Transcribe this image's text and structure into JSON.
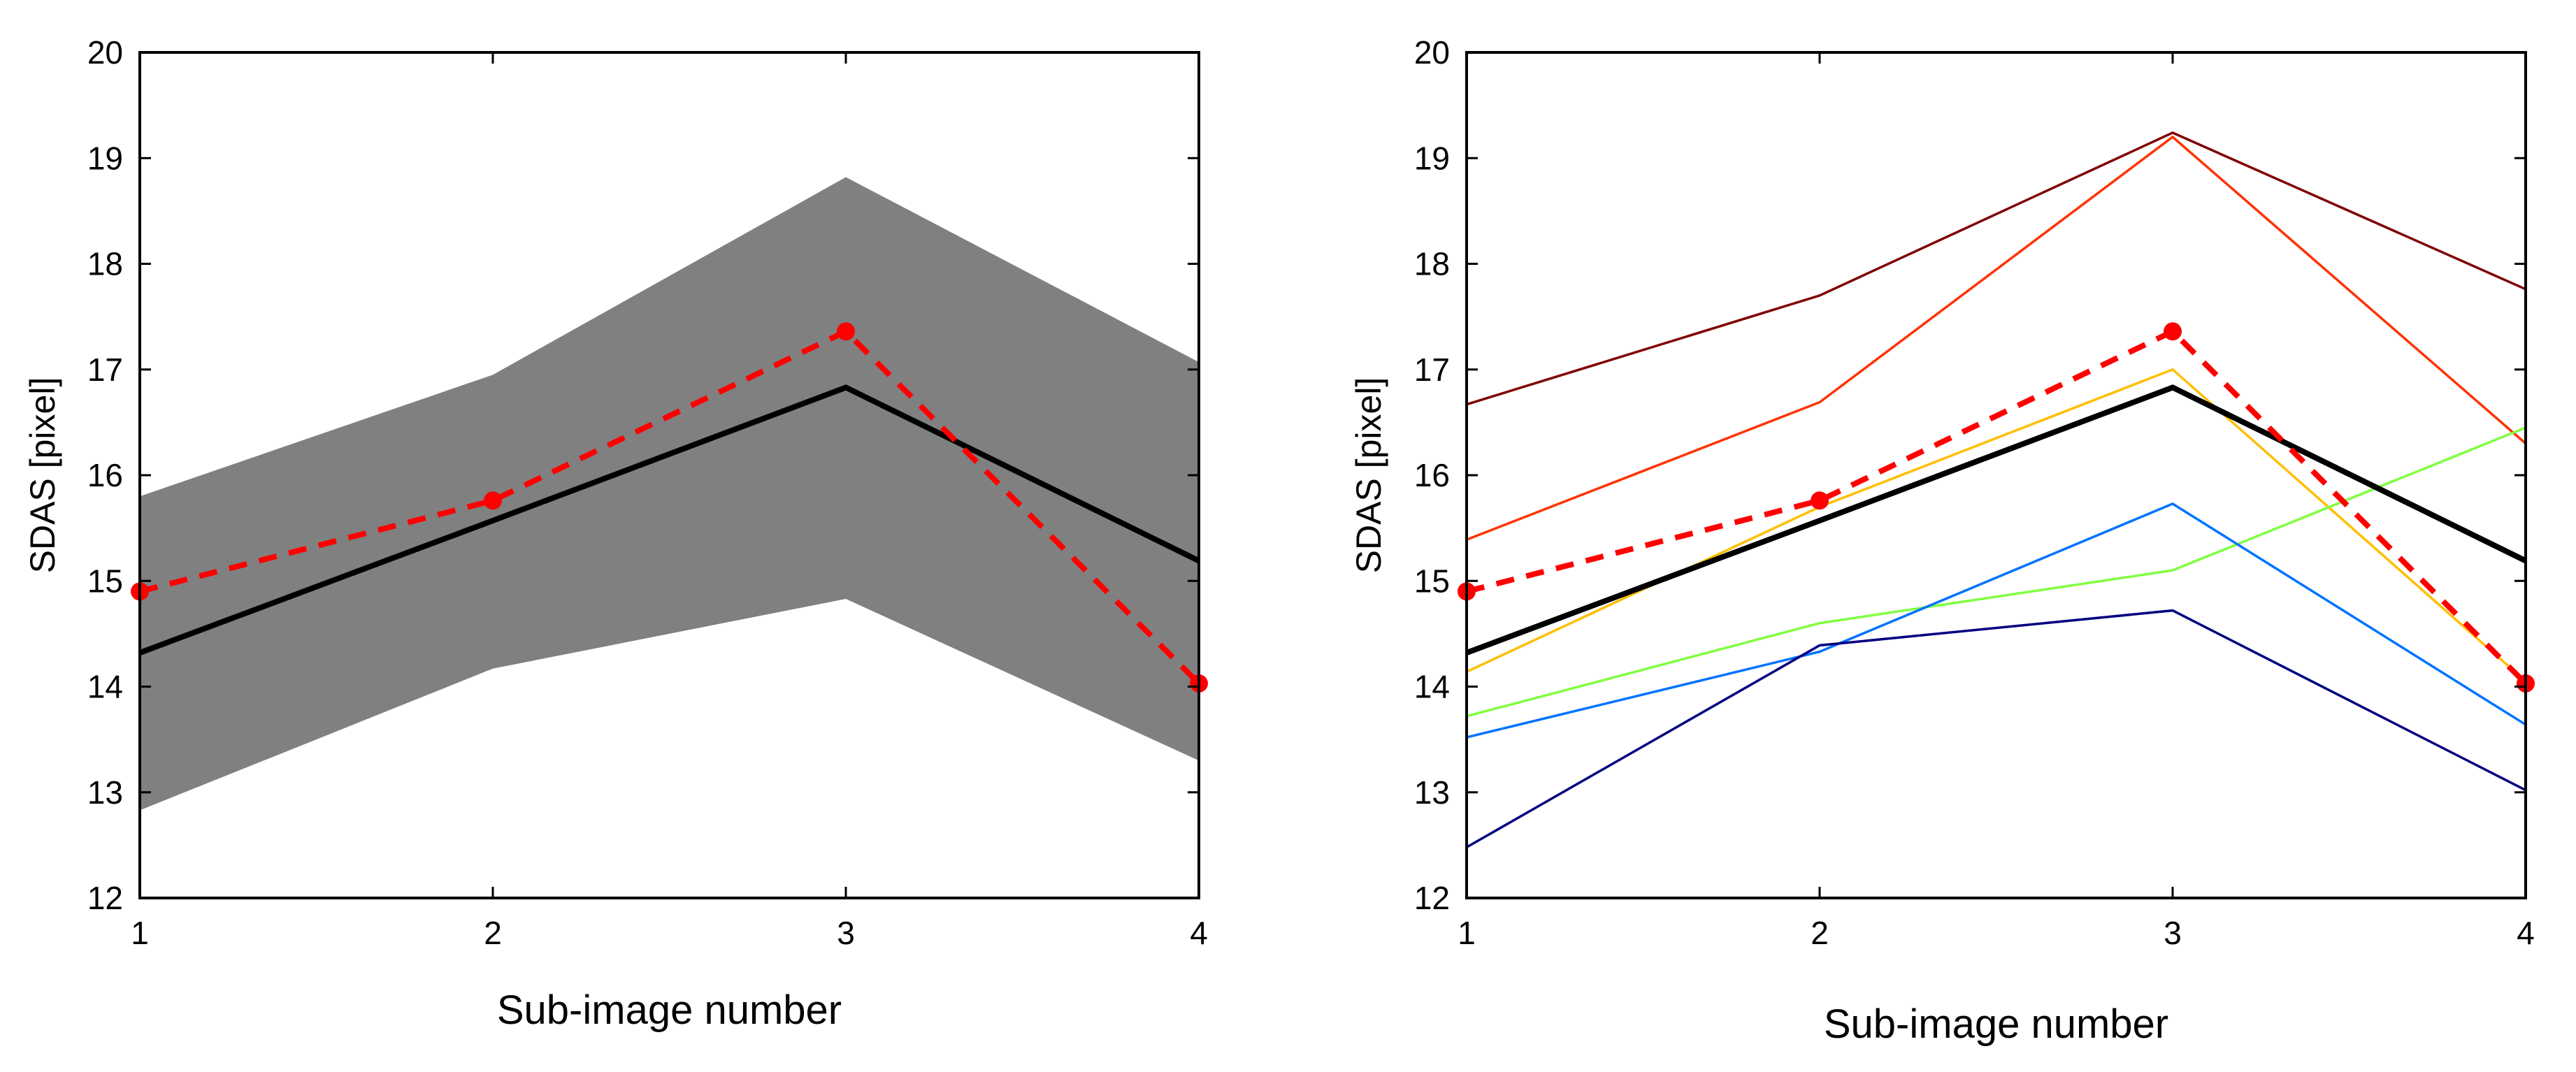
{
  "chart_data": [
    {
      "type": "line",
      "title": "",
      "xlabel": "Sub-image number",
      "ylabel": "SDAS [pixel]",
      "x": [
        1,
        2,
        3,
        4
      ],
      "xlim": [
        1,
        4
      ],
      "ylim": [
        12,
        20
      ],
      "xticks": [
        "1",
        "2",
        "3",
        "4"
      ],
      "yticks": [
        "12",
        "13",
        "14",
        "15",
        "16",
        "17",
        "18",
        "19",
        "20"
      ],
      "grid": false,
      "band": {
        "lower": [
          12.83,
          14.17,
          14.83,
          13.3
        ],
        "upper": [
          15.8,
          16.95,
          18.82,
          17.07
        ],
        "color": "#808080"
      },
      "series": [
        {
          "values": [
            14.32,
            15.57,
            16.83,
            15.19
          ],
          "color": "#000000",
          "style": "solid"
        },
        {
          "values": [
            14.9,
            15.76,
            17.36,
            14.03
          ],
          "color": "#ff0000",
          "style": "dashed",
          "markers": true
        }
      ]
    },
    {
      "type": "line",
      "title": "",
      "xlabel": "Sub-image number",
      "ylabel": "SDAS [pixel]",
      "x": [
        1,
        2,
        3,
        4
      ],
      "xlim": [
        1,
        4
      ],
      "ylim": [
        12,
        20
      ],
      "xticks": [
        "1",
        "2",
        "3",
        "4"
      ],
      "yticks": [
        "12",
        "13",
        "14",
        "15",
        "16",
        "17",
        "18",
        "19",
        "20"
      ],
      "grid": false,
      "series": [
        {
          "values": [
            16.67,
            17.7,
            19.24,
            17.76
          ],
          "color": "#800000",
          "style": "thin"
        },
        {
          "values": [
            15.39,
            16.69,
            19.2,
            16.3
          ],
          "color": "#ff3300",
          "style": "thin"
        },
        {
          "values": [
            14.14,
            15.7,
            17.0,
            14.05
          ],
          "color": "#ffbf00",
          "style": "thin"
        },
        {
          "values": [
            13.72,
            14.6,
            15.1,
            16.45
          ],
          "color": "#80ff40",
          "style": "thin"
        },
        {
          "values": [
            13.52,
            14.33,
            15.73,
            13.64
          ],
          "color": "#0073ff",
          "style": "thin"
        },
        {
          "values": [
            12.48,
            14.39,
            14.72,
            13.02
          ],
          "color": "#000080",
          "style": "thin"
        },
        {
          "values": [
            14.32,
            15.57,
            16.83,
            15.19
          ],
          "color": "#000000",
          "style": "solid"
        },
        {
          "values": [
            14.9,
            15.76,
            17.36,
            14.03
          ],
          "color": "#ff0000",
          "style": "dashed",
          "markers": true
        }
      ]
    }
  ]
}
